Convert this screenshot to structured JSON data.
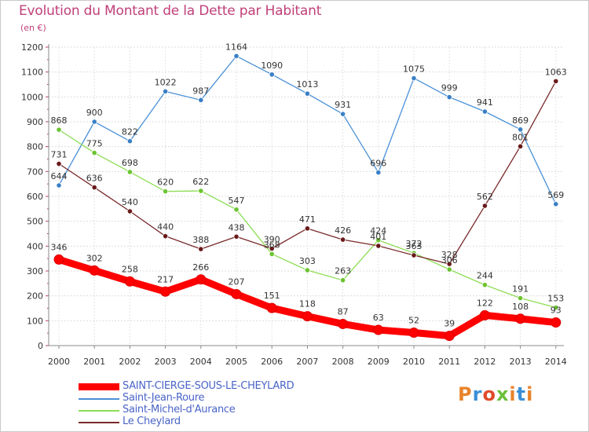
{
  "header": {
    "title": "Evolution du Montant de la Dette par Habitant",
    "unit": "(en €)"
  },
  "logo": {
    "text": "Proxiti",
    "colors": [
      "#e8832a",
      "#3a8fd6",
      "#e04a2a",
      "#6cbf3a",
      "#e8832a",
      "#3a8fd6",
      "#e8832a"
    ]
  },
  "chart_data": {
    "type": "line",
    "title": "Evolution du Montant de la Dette par Habitant",
    "subtitle": "(en €)",
    "x": [
      "2000",
      "2001",
      "2002",
      "2003",
      "2004",
      "2005",
      "2006",
      "2007",
      "2008",
      "2009",
      "2010",
      "2011",
      "2012",
      "2013",
      "2014"
    ],
    "ylim": [
      0,
      1200
    ],
    "yticks": [
      "0",
      "100",
      "200",
      "300",
      "400",
      "500",
      "600",
      "700",
      "800",
      "900",
      "1000",
      "1100",
      "1200"
    ],
    "grid": true,
    "legend_position": "bottom-left",
    "series": [
      {
        "name": "SAINT-CIERGE-SOUS-LE-CHEYLARD",
        "color": "#ff0000",
        "point_color": "#ee1111",
        "bold": true,
        "values": [
          346,
          302,
          258,
          217,
          266,
          207,
          151,
          118,
          87,
          63,
          52,
          39,
          122,
          108,
          93
        ],
        "labels": [
          "346",
          "302",
          "258",
          "217",
          "266",
          "207",
          "151",
          "118",
          "87",
          "63",
          "52",
          "39",
          "122",
          "108",
          "93"
        ]
      },
      {
        "name": "Saint-Jean-Roure",
        "color": "#4a90d6",
        "point_color": "#3a7fc6",
        "bold": false,
        "values": [
          644,
          900,
          822,
          1022,
          987,
          1164,
          1090,
          1013,
          931,
          696,
          1075,
          999,
          941,
          869,
          569
        ],
        "labels": [
          "644",
          "900",
          "822",
          "1022",
          "987",
          "1164",
          "1090",
          "1013",
          "931",
          "696",
          "1075",
          "999",
          "941",
          "869",
          "569"
        ]
      },
      {
        "name": "Saint-Michel-d'Aurance",
        "color": "#8ddd55",
        "point_color": "#6cc430",
        "bold": false,
        "values": [
          868,
          775,
          698,
          620,
          622,
          547,
          368,
          303,
          263,
          424,
          372,
          306,
          244,
          191,
          153
        ],
        "labels": [
          "868",
          "775",
          "698",
          "620",
          "622",
          "547",
          "368",
          "303",
          "263",
          "424",
          "372",
          "306",
          "244",
          "191",
          "153"
        ]
      },
      {
        "name": "Le Cheylard",
        "color": "#7a2a2a",
        "point_color": "#6a1a1a",
        "bold": false,
        "values": [
          731,
          636,
          540,
          440,
          388,
          438,
          390,
          471,
          426,
          401,
          363,
          328,
          562,
          801,
          1063
        ],
        "labels": [
          "731",
          "636",
          "540",
          "440",
          "388",
          "438",
          "390",
          "471",
          "426",
          "401",
          "363",
          "328",
          "562",
          "801",
          "1063"
        ]
      }
    ]
  }
}
